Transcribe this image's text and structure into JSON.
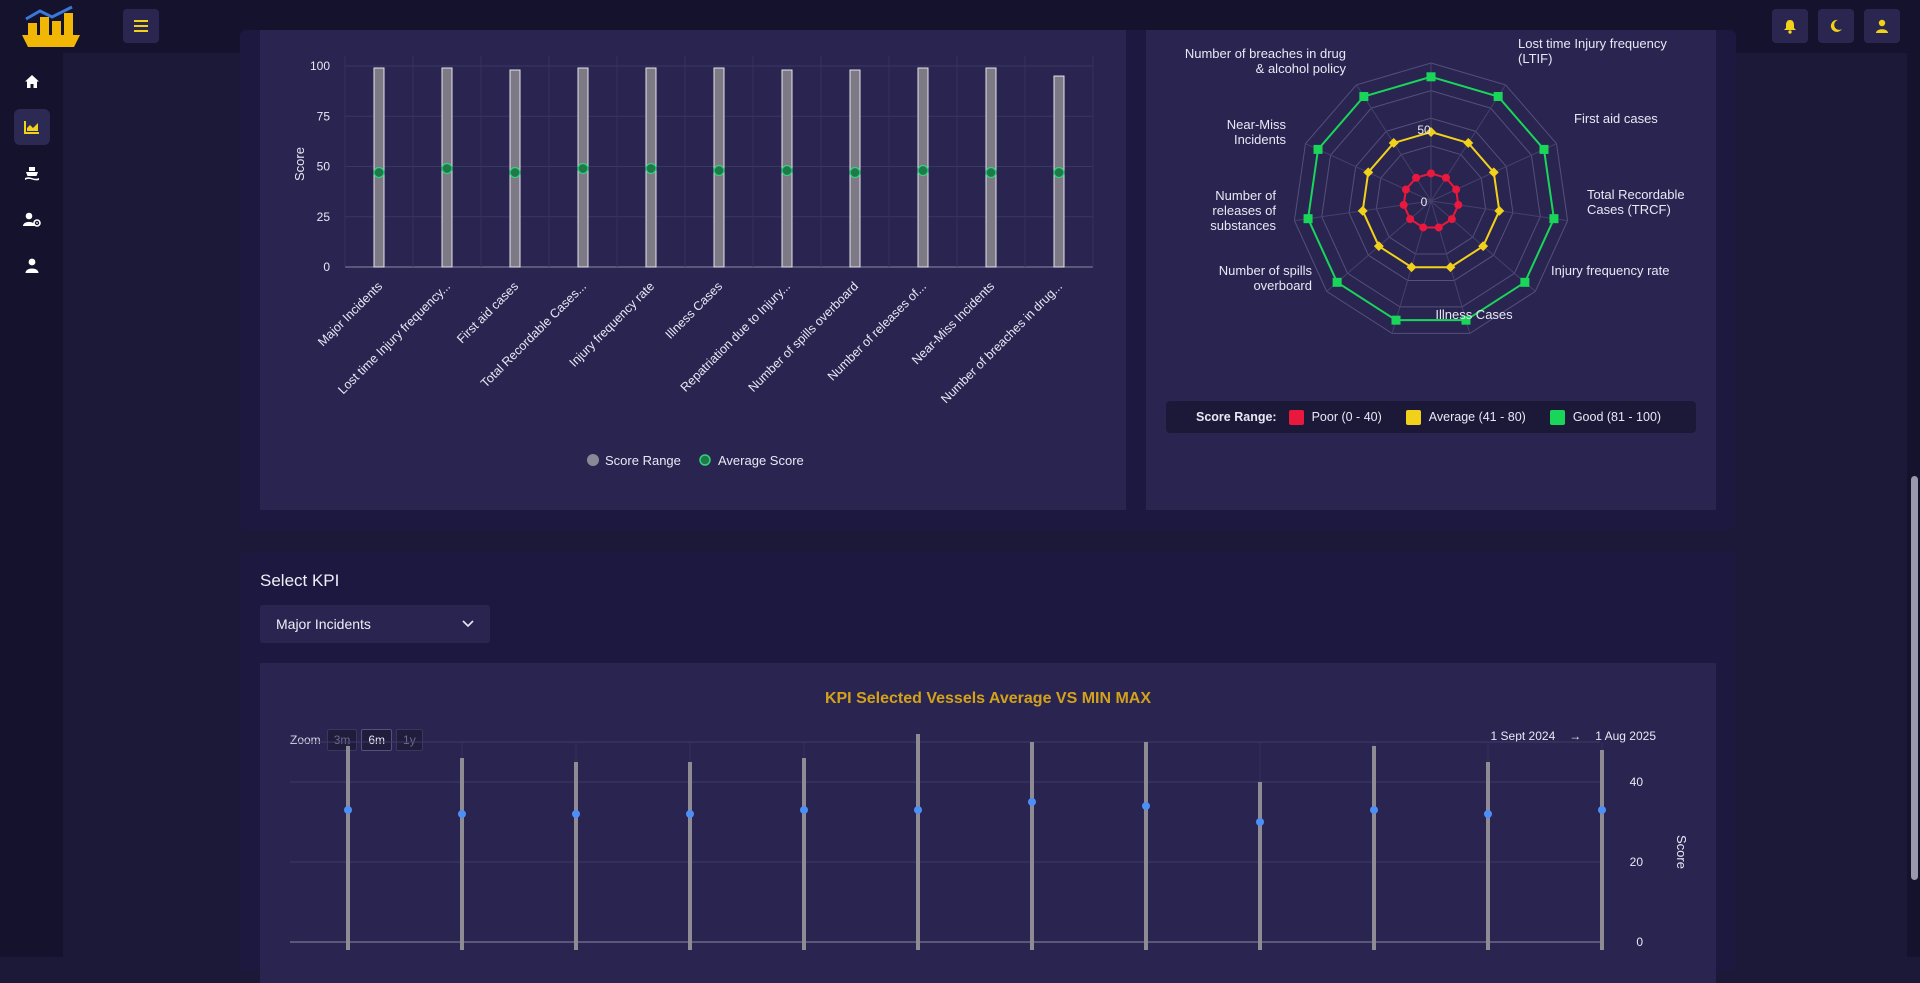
{
  "app": {
    "logo": "ship-chart-logo"
  },
  "topbar": {
    "icons": [
      "menu-icon",
      "bell-icon",
      "moon-icon",
      "user-icon"
    ]
  },
  "sidebar": {
    "items": [
      {
        "icon": "home-icon"
      },
      {
        "icon": "chart-icon",
        "active": true
      },
      {
        "icon": "ship-icon"
      },
      {
        "icon": "user-settings-icon"
      },
      {
        "icon": "user-icon"
      }
    ]
  },
  "colors": {
    "accent": "#d4a21a",
    "poor": "#e8193c",
    "average": "#f2d11b",
    "good": "#19d65a",
    "blue_point": "#4d8ff5"
  },
  "bar_chart": {
    "ylabel": "Score",
    "y_ticks": [
      "0",
      "25",
      "50",
      "75",
      "100"
    ],
    "legend": {
      "range": "Score Range",
      "average": "Average Score"
    }
  },
  "radar": {
    "tick_labels": [
      "0",
      "50"
    ],
    "legend_title": "Score Range:",
    "legend_items": [
      "Poor (0 - 40)",
      "Average (41 - 80)",
      "Good (81 - 100)"
    ]
  },
  "kpi_section": {
    "select_label": "Select KPI",
    "selected": "Major Incidents",
    "chart_title": "KPI Selected Vessels Average VS MIN MAX",
    "zoom_label": "Zoom",
    "zoom_buttons": [
      "3m",
      "6m",
      "1y"
    ],
    "zoom_active": "6m",
    "date_from": "1 Sept 2024",
    "date_arrow": "→",
    "date_to": "1 Aug 2025",
    "ylabel": "Score",
    "y_ticks": [
      "0",
      "20",
      "40"
    ]
  },
  "chart_data": [
    {
      "type": "bar",
      "categories": [
        "Major Incidents",
        "Lost time Injury frequency...",
        "First aid cases",
        "Total Recordable Cases...",
        "Injury frequency rate",
        "Illness Cases",
        "Repatriation due to Injury...",
        "Number of spills overboard",
        "Number of releases of...",
        "Near-Miss Incidents",
        "Number of breaches in drug..."
      ],
      "series": [
        {
          "name": "Score Range",
          "min": [
            0,
            0,
            0,
            0,
            0,
            0,
            0,
            0,
            0,
            0,
            0
          ],
          "max": [
            99,
            99,
            98,
            99,
            99,
            99,
            98,
            98,
            99,
            99,
            95
          ]
        },
        {
          "name": "Average Score",
          "values": [
            47,
            49,
            47,
            49,
            49,
            48,
            48,
            47,
            48,
            47,
            47
          ]
        }
      ],
      "ylabel": "Score",
      "ylim": [
        0,
        100
      ]
    },
    {
      "type": "radar",
      "axes": [
        "Major Incidents",
        "Lost time Injury frequency (LTIF)",
        "First aid cases",
        "Total Recordable Cases (TRCF)",
        "Injury frequency rate",
        "Illness Cases",
        "Repatriation due to Injury",
        "Number of spills overboard",
        "Number of releases of substances",
        "Near-Miss Incidents",
        "Number of breaches in drug & alcohol policy"
      ],
      "visible_axis_labels": [
        "Lost time Injury frequency (LTIF)",
        "First aid cases",
        "Total Recordable Cases (TRCF)",
        "Injury frequency rate",
        "Illness Cases",
        "Number of spills overboard",
        "Number of releases of substances",
        "Near-Miss Incidents",
        "Number of breaches in drug & alcohol policy"
      ],
      "series": [
        {
          "name": "Poor (0 - 40)",
          "values": [
            20,
            20,
            20,
            20,
            20,
            20,
            20,
            20,
            20,
            20,
            20
          ]
        },
        {
          "name": "Average (41 - 80)",
          "values": [
            50,
            50,
            50,
            50,
            50,
            50,
            50,
            50,
            50,
            50,
            50
          ]
        },
        {
          "name": "Good (81 - 100)",
          "values": [
            90,
            90,
            90,
            90,
            90,
            90,
            90,
            90,
            90,
            90,
            90
          ]
        }
      ],
      "rlim": [
        0,
        100
      ]
    },
    {
      "type": "scatter",
      "title": "KPI Selected Vessels Average VS MIN MAX",
      "points": 12,
      "min": [
        0,
        0,
        0,
        0,
        0,
        0,
        0,
        0,
        0,
        0,
        0,
        0
      ],
      "max": [
        49,
        46,
        45,
        45,
        46,
        52,
        50,
        50,
        40,
        49,
        45,
        48
      ],
      "average": [
        33,
        32,
        32,
        32,
        33,
        33,
        35,
        34,
        30,
        33,
        32,
        33
      ],
      "ylabel": "Score",
      "ylim": [
        0,
        50
      ]
    }
  ]
}
